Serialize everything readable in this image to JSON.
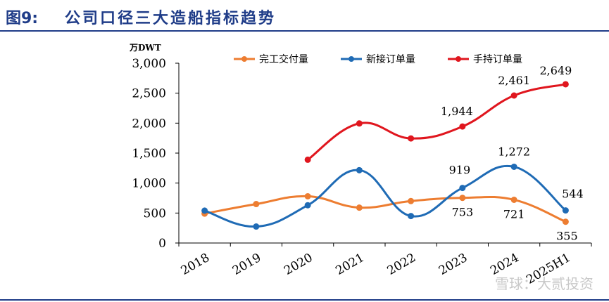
{
  "header": {
    "figure_number": "图9:",
    "title": "公司口径三大造船指标趋势"
  },
  "watermark": "雪球：大贰投资",
  "chart_data": {
    "type": "line",
    "unit_label": "万DWT",
    "categories": [
      "2018",
      "2019",
      "2020",
      "2021",
      "2022",
      "2023",
      "2024",
      "2025H1"
    ],
    "ylim": [
      0,
      3000
    ],
    "yticks": [
      0,
      500,
      1000,
      1500,
      2000,
      2500,
      3000
    ],
    "ytick_labels": [
      "0",
      "500",
      "1,000",
      "1,500",
      "2,000",
      "2,500",
      "3,000"
    ],
    "legend_position": "top-center",
    "grid": false,
    "series": [
      {
        "name": "完工交付量",
        "color": "#ed7d31",
        "values": [
          490,
          650,
          780,
          590,
          700,
          753,
          721,
          355
        ],
        "labels": [
          null,
          null,
          null,
          null,
          null,
          "753",
          "721",
          "355"
        ]
      },
      {
        "name": "新接订单量",
        "color": "#1f6bb5",
        "values": [
          540,
          275,
          630,
          1215,
          450,
          919,
          1272,
          544
        ],
        "labels": [
          null,
          null,
          null,
          null,
          null,
          "919",
          "1,272",
          "544"
        ]
      },
      {
        "name": "手持订单量",
        "color": "#e0161e",
        "values": [
          null,
          null,
          1390,
          1995,
          1745,
          1944,
          2461,
          2649
        ],
        "labels": [
          null,
          null,
          null,
          null,
          null,
          "1,944",
          "2,461",
          "2,649"
        ]
      }
    ]
  }
}
